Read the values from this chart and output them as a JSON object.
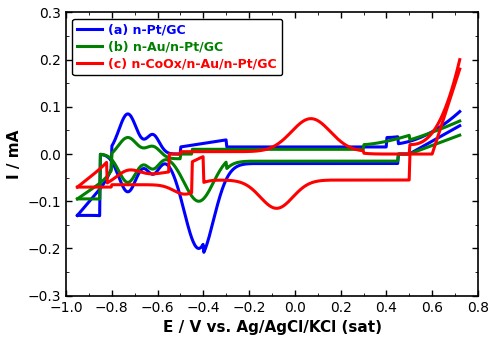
{
  "title": "",
  "xlabel": "E / V vs. Ag/AgCl/KCl (sat)",
  "ylabel": "I / mA",
  "xlim": [
    -1.0,
    0.8
  ],
  "ylim": [
    -0.3,
    0.3
  ],
  "xticks": [
    -1.0,
    -0.8,
    -0.6,
    -0.4,
    -0.2,
    0.0,
    0.2,
    0.4,
    0.6,
    0.8
  ],
  "yticks": [
    -0.3,
    -0.2,
    -0.1,
    0.0,
    0.1,
    0.2,
    0.3
  ],
  "colors": {
    "blue": "#0000FF",
    "green": "#008000",
    "red": "#FF0000"
  },
  "legend": {
    "labels": [
      "(a) n-Pt/GC",
      "(b) n-Au/n-Pt/GC",
      "(c) n-CoOx/n-Au/n-Pt/GC"
    ],
    "colors": [
      "#0000FF",
      "#008000",
      "#FF0000"
    ],
    "loc": "upper left"
  },
  "linewidth": 2.2,
  "background": "#ffffff"
}
